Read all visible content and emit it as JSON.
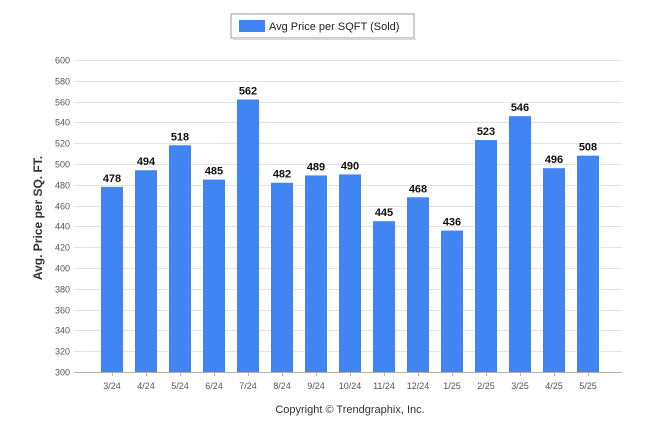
{
  "chart_data": {
    "type": "bar",
    "categories": [
      "3/24",
      "4/24",
      "5/24",
      "6/24",
      "7/24",
      "8/24",
      "9/24",
      "10/24",
      "11/24",
      "12/24",
      "1/25",
      "2/25",
      "3/25",
      "4/25",
      "5/25"
    ],
    "series": [
      {
        "name": "Avg Price per SQFT (Sold)",
        "values": [
          478,
          494,
          518,
          485,
          562,
          482,
          489,
          490,
          445,
          468,
          436,
          523,
          546,
          496,
          508
        ],
        "color": "#4184f3"
      }
    ],
    "ylabel": "Avg. Price per SQ. FT.",
    "xlabel": "",
    "ylim": [
      300,
      600
    ],
    "yticks": [
      300,
      320,
      340,
      360,
      380,
      400,
      420,
      440,
      460,
      480,
      500,
      520,
      540,
      560,
      580,
      600
    ],
    "grid": true,
    "legend_position": "top-center",
    "data_labels": true
  },
  "footer": {
    "copyright": "Copyright © Trendgraphix, Inc."
  }
}
